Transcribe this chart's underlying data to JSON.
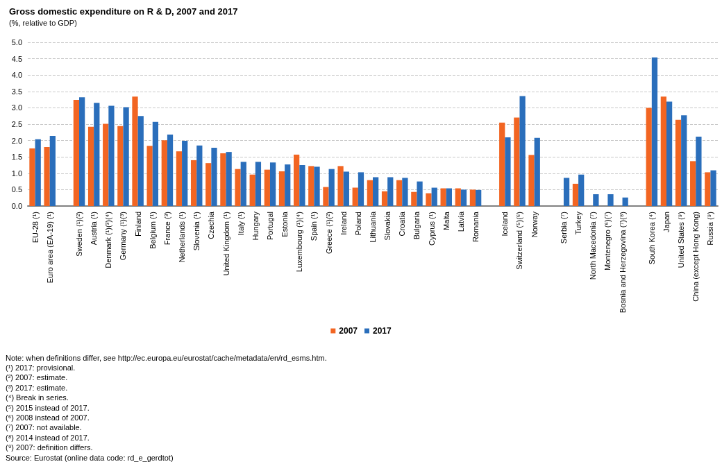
{
  "chart_data": {
    "type": "bar",
    "title": "Gross domestic expenditure on R & D, 2007 and 2017",
    "subtitle": "(%, relative to GDP)",
    "categories": [
      "EU-28 (¹)",
      "Euro area (EA-19) (¹)",
      null,
      "Sweden (¹)(²)",
      "Austria (¹)",
      "Denmark (¹)(³)(⁴)",
      "Germany (¹)(³)",
      "Finland",
      "Belgium (¹)",
      "France (³)",
      "Netherlands (¹)",
      "Slovenia (¹)",
      "Czechia",
      "United Kingdom (¹)",
      "Italy (¹)",
      "Hungary",
      "Portugal",
      "Estonia",
      "Luxembourg (¹)(⁴)",
      "Spain (¹)",
      "Greece (¹)(²)",
      "Ireland",
      "Poland",
      "Lithuania",
      "Slovakia",
      "Croatia",
      "Bulgaria",
      "Cyprus (¹)",
      "Malta",
      "Latvia",
      "Romania",
      null,
      "Iceland",
      "Switzerland (⁵)(⁶)",
      "Norway",
      null,
      "Serbia (⁷)",
      "Turkey",
      "North Macedonia (⁷)",
      "Montenegro (⁶)(⁷)",
      "Bosnia and Herzegovina (⁷)(⁸)",
      null,
      "South Korea (⁴)",
      "Japan",
      "United States (⁹)",
      "China (except Hong Kong)",
      "Russia (⁹)"
    ],
    "series": [
      {
        "name": "2007",
        "color": "#f26522",
        "values": [
          1.76,
          1.8,
          null,
          3.24,
          2.42,
          2.51,
          2.44,
          3.34,
          1.84,
          2.01,
          1.67,
          1.4,
          1.31,
          1.61,
          1.13,
          0.96,
          1.11,
          1.06,
          1.57,
          1.22,
          0.58,
          1.22,
          0.56,
          0.79,
          0.45,
          0.79,
          0.43,
          0.39,
          0.54,
          0.54,
          0.5,
          null,
          2.55,
          2.7,
          1.56,
          null,
          null,
          0.68,
          null,
          null,
          null,
          null,
          3.0,
          3.34,
          2.63,
          1.37,
          1.03
        ]
      },
      {
        "name": "2017",
        "color": "#2a6ebb",
        "values": [
          2.04,
          2.14,
          null,
          3.32,
          3.15,
          3.06,
          3.02,
          2.75,
          2.57,
          2.18,
          1.99,
          1.85,
          1.78,
          1.65,
          1.35,
          1.35,
          1.33,
          1.27,
          1.25,
          1.2,
          1.13,
          1.05,
          1.03,
          0.88,
          0.88,
          0.86,
          0.75,
          0.56,
          0.54,
          0.5,
          0.49,
          null,
          2.1,
          3.36,
          2.08,
          null,
          0.86,
          0.96,
          0.36,
          0.36,
          0.26,
          null,
          4.54,
          3.19,
          2.77,
          2.12,
          1.09
        ]
      }
    ],
    "ylim": [
      0,
      5
    ],
    "yticks": [
      {
        "value": 0,
        "label": "0.0"
      },
      {
        "value": 0.5,
        "label": "0.5"
      },
      {
        "value": 1,
        "label": "1.0"
      },
      {
        "value": 1.5,
        "label": "1.5"
      },
      {
        "value": 2,
        "label": "2.0"
      },
      {
        "value": 2.5,
        "label": "2.5"
      },
      {
        "value": 3,
        "label": "3.0"
      },
      {
        "value": 3.5,
        "label": "3.5"
      },
      {
        "value": 4,
        "label": "4.0"
      },
      {
        "value": 4.5,
        "label": "4.5"
      },
      {
        "value": 5,
        "label": "5.0"
      }
    ],
    "grid": "y",
    "legend": "bottom",
    "annotations": [
      "Note: when definitions differ, see http://ec.europa.eu/eurostat/cache/metadata/en/rd_esms.htm.",
      "(¹) 2017: provisional.",
      "(²) 2007: estimate.",
      "(³) 2017: estimate.",
      "(⁴) Break in series.",
      "(⁵) 2015 instead of 2017.",
      "(⁶) 2008 instead of 2007.",
      "(⁷) 2007: not available.",
      "(⁸) 2014 instead of 2017.",
      "(⁹) 2007: definition differs.",
      "Source: Eurostat (online data code: rd_e_gerdtot)"
    ]
  }
}
